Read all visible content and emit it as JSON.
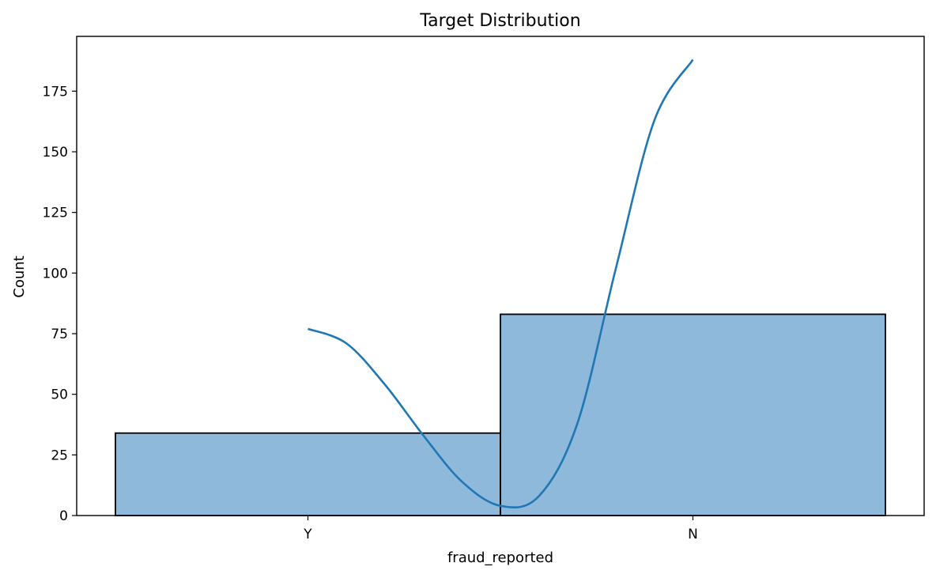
{
  "chart_data": {
    "type": "bar",
    "title": "Target Distribution",
    "xlabel": "fraud_reported",
    "ylabel": "Count",
    "categories": [
      "Y",
      "N"
    ],
    "values": [
      34,
      83
    ],
    "ylim": [
      0,
      197.6
    ],
    "yticks": [
      0,
      25,
      50,
      75,
      100,
      125,
      150,
      175
    ],
    "grid": false,
    "kde": {
      "x": [
        0,
        0.1,
        0.2,
        0.3,
        0.4,
        0.5,
        0.6,
        0.7,
        0.8,
        0.9,
        1
      ],
      "y": [
        77,
        71,
        54,
        33,
        14,
        4,
        8,
        38,
        102,
        163,
        188
      ]
    },
    "colors": {
      "bar_fill": "#8fb9da",
      "bar_edge": "#000000",
      "kde_line": "#1f77b4"
    }
  }
}
